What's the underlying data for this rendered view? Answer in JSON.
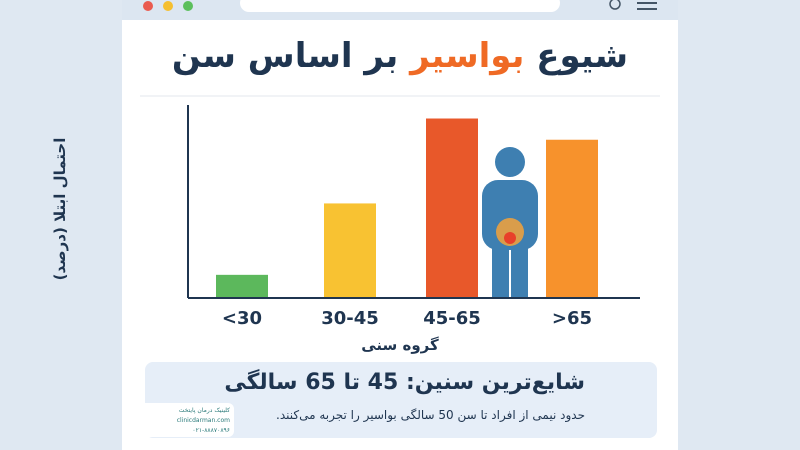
{
  "chart_data": {
    "type": "bar",
    "title": {
      "start": "شیوع",
      "highlight": "بواسیر",
      "end": "بر اساس سن"
    },
    "x_label": "گروه سنی",
    "y_label": "احتمال ابتلا (درصد)",
    "categories": [
      "<30",
      "30-45",
      "45-65",
      ">65"
    ],
    "values": [
      12,
      49,
      93,
      82
    ],
    "colors": [
      "#5cb85c",
      "#f8c232",
      "#e8582a",
      "#f7922c"
    ],
    "ylim": [
      0,
      100
    ],
    "highlight_box": {
      "heading": "شایع‌ترین سنین: 45 تا 65 سالگی",
      "text": "حدود نیمی از افراد تا سن 50 سالگی بواسیر را تجربه می‌کنند."
    }
  },
  "logo": {
    "name": "کلینیک درمان پایتخت",
    "site": "clinicdarman.com",
    "phone": "۰۲۱-۸۸۸۷۰۸۹۶"
  }
}
